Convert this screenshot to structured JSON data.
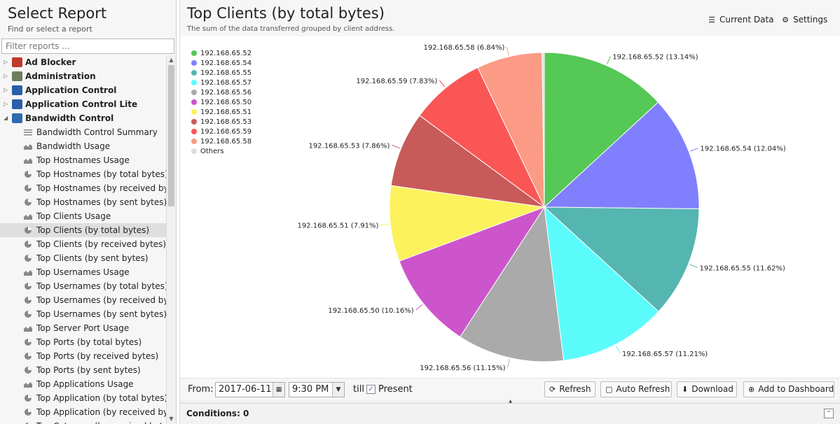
{
  "left": {
    "title": "Select Report",
    "subtitle": "Find or select a report",
    "filter_placeholder": "Filter reports ...",
    "tree": [
      {
        "type": "cat",
        "label": "Ad Blocker",
        "icon": "ad-blocker-icon",
        "color": "#c0392b",
        "arrow": "▷"
      },
      {
        "type": "cat",
        "label": "Administration",
        "icon": "administration-icon",
        "color": "#6d7f5a",
        "arrow": "▷"
      },
      {
        "type": "cat",
        "label": "Application Control",
        "icon": "application-control-icon",
        "color": "#2a5fa8",
        "arrow": "▷"
      },
      {
        "type": "cat",
        "label": "Application Control Lite",
        "icon": "application-control-lite-icon",
        "color": "#2a5fa8",
        "arrow": "▷"
      },
      {
        "type": "cat",
        "label": "Bandwidth Control",
        "icon": "bandwidth-control-icon",
        "color": "#2f6ab0",
        "arrow": "◢"
      },
      {
        "type": "leaf",
        "label": "Bandwidth Control Summary",
        "icon": "summary-icon"
      },
      {
        "type": "leaf",
        "label": "Bandwidth Usage",
        "icon": "area-chart-icon"
      },
      {
        "type": "leaf",
        "label": "Top Hostnames Usage",
        "icon": "area-chart-icon"
      },
      {
        "type": "leaf",
        "label": "Top Hostnames (by total bytes)",
        "icon": "pie-chart-icon"
      },
      {
        "type": "leaf",
        "label": "Top Hostnames (by received byte...",
        "icon": "pie-chart-icon"
      },
      {
        "type": "leaf",
        "label": "Top Hostnames (by sent bytes)",
        "icon": "pie-chart-icon"
      },
      {
        "type": "leaf",
        "label": "Top Clients Usage",
        "icon": "area-chart-icon"
      },
      {
        "type": "leaf",
        "label": "Top Clients (by total bytes)",
        "icon": "pie-chart-icon",
        "selected": true
      },
      {
        "type": "leaf",
        "label": "Top Clients (by received bytes)",
        "icon": "pie-chart-icon"
      },
      {
        "type": "leaf",
        "label": "Top Clients (by sent bytes)",
        "icon": "pie-chart-icon"
      },
      {
        "type": "leaf",
        "label": "Top Usernames Usage",
        "icon": "area-chart-icon"
      },
      {
        "type": "leaf",
        "label": "Top Usernames (by total bytes)",
        "icon": "pie-chart-icon"
      },
      {
        "type": "leaf",
        "label": "Top Usernames (by received bytes)",
        "icon": "pie-chart-icon"
      },
      {
        "type": "leaf",
        "label": "Top Usernames (by sent bytes)",
        "icon": "pie-chart-icon"
      },
      {
        "type": "leaf",
        "label": "Top Server Port Usage",
        "icon": "area-chart-icon"
      },
      {
        "type": "leaf",
        "label": "Top Ports (by total bytes)",
        "icon": "pie-chart-icon"
      },
      {
        "type": "leaf",
        "label": "Top Ports (by received bytes)",
        "icon": "pie-chart-icon"
      },
      {
        "type": "leaf",
        "label": "Top Ports (by sent bytes)",
        "icon": "pie-chart-icon"
      },
      {
        "type": "leaf",
        "label": "Top Applications Usage",
        "icon": "area-chart-icon"
      },
      {
        "type": "leaf",
        "label": "Top Application (by total bytes)",
        "icon": "pie-chart-icon"
      },
      {
        "type": "leaf",
        "label": "Top Application (by received bytes)",
        "icon": "pie-chart-icon"
      },
      {
        "type": "leaf",
        "label": "Top Category (by received bytes)",
        "icon": "pie-chart-icon"
      }
    ]
  },
  "main": {
    "title": "Top Clients (by total bytes)",
    "subtitle": "The sum of the data transferred grouped by client address.",
    "current_data_label": "Current Data",
    "settings_label": "Settings"
  },
  "chart_data": {
    "type": "pie",
    "title": "",
    "legend_position": "top-left",
    "categories": [
      "192.168.65.52",
      "192.168.65.54",
      "192.168.65.55",
      "192.168.65.57",
      "192.168.65.56",
      "192.168.65.50",
      "192.168.65.51",
      "192.168.65.53",
      "192.168.65.59",
      "192.168.65.58",
      "Others"
    ],
    "values": [
      13.14,
      12.04,
      11.62,
      11.21,
      11.15,
      10.16,
      7.91,
      7.86,
      7.83,
      6.84,
      0.24
    ],
    "colors": [
      "#55c855",
      "#8080ff",
      "#55b5b0",
      "#5cfbfb",
      "#aaaaaa",
      "#cc55cc",
      "#fbf25c",
      "#c85a5a",
      "#fb5656",
      "#fb9a85",
      "#dddddd"
    ],
    "slice_labels": [
      "192.168.65.52 (13.14%)",
      "192.168.65.54 (12.04%)",
      "192.168.65.55 (11.62%)",
      "192.168.65.57 (11.21%)",
      "192.168.65.56 (11.15%)",
      "192.168.65.50 (10.16%)",
      "192.168.65.51 (7.91%)",
      "192.168.65.53 (7.86%)",
      "192.168.65.59 (7.83%)",
      "192.168.65.58 (6.84%)",
      ""
    ]
  },
  "bottom": {
    "from_label": "From:",
    "date_value": "2017-06-11",
    "time_value": "9:30 PM",
    "till_label": "till",
    "present_label": "Present",
    "present_checked": true,
    "refresh_label": "Refresh",
    "auto_refresh_label": "Auto Refresh",
    "download_label": "Download",
    "add_dashboard_label": "Add to Dashboard"
  },
  "conditions": {
    "label": "Conditions: 0"
  }
}
